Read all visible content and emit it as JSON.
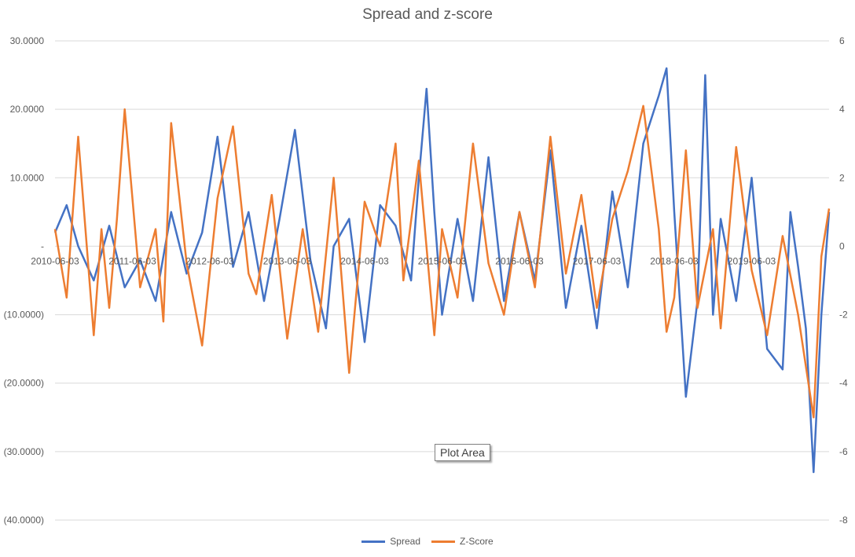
{
  "chart_data": {
    "type": "line",
    "title": "Spread and z-score",
    "tooltip": "Plot Area",
    "x_tick_labels": [
      "2010-06-03",
      "2011-06-03",
      "2012-06-03",
      "2013-06-03",
      "2014-06-03",
      "2015-06-03",
      "2016-06-03",
      "2017-06-03",
      "2018-06-03",
      "2019-06-03"
    ],
    "y_left": {
      "ylim": [
        -40,
        30
      ],
      "tick_labels": [
        "30.0000",
        "20.0000",
        "10.0000",
        "-",
        "(10.0000)",
        "(20.0000)",
        "(30.0000)",
        "(40.0000)"
      ],
      "tick_values": [
        30,
        20,
        10,
        0,
        -10,
        -20,
        -30,
        -40
      ]
    },
    "y_right": {
      "ylim": [
        -8,
        6
      ],
      "tick_labels": [
        "6",
        "4",
        "2",
        "0",
        "-2",
        "-4",
        "-6",
        "-8"
      ],
      "tick_values": [
        6,
        4,
        2,
        0,
        -2,
        -4,
        -6,
        -8
      ]
    },
    "grid": true,
    "legend_position": "bottom",
    "series": [
      {
        "name": "Spread",
        "axis": "left",
        "color": "#4472C4",
        "x": [
          2010.0,
          2010.15,
          2010.3,
          2010.5,
          2010.7,
          2010.9,
          2011.1,
          2011.3,
          2011.5,
          2011.7,
          2011.9,
          2012.1,
          2012.3,
          2012.5,
          2012.7,
          2012.9,
          2013.1,
          2013.3,
          2013.5,
          2013.6,
          2013.8,
          2014.0,
          2014.2,
          2014.4,
          2014.6,
          2014.7,
          2014.8,
          2014.9,
          2015.0,
          2015.2,
          2015.4,
          2015.6,
          2015.8,
          2016.0,
          2016.2,
          2016.4,
          2016.6,
          2016.8,
          2017.0,
          2017.2,
          2017.4,
          2017.6,
          2017.8,
          2017.9,
          2018.0,
          2018.15,
          2018.3,
          2018.4,
          2018.5,
          2018.6,
          2018.8,
          2019.0,
          2019.2,
          2019.4,
          2019.5,
          2019.6,
          2019.7,
          2019.8,
          2019.9,
          2020.0
        ],
        "values": [
          2,
          6,
          0,
          -5,
          3,
          -6,
          -2,
          -8,
          5,
          -4,
          2,
          16,
          -3,
          5,
          -8,
          4,
          17,
          -2,
          -12,
          0,
          4,
          -14,
          6,
          3,
          -5,
          10,
          23,
          5,
          -10,
          4,
          -8,
          13,
          -8,
          5,
          -5,
          14,
          -9,
          3,
          -12,
          8,
          -6,
          15,
          22,
          26,
          5,
          -22,
          -8,
          25,
          -10,
          4,
          -8,
          10,
          -15,
          -18,
          5,
          -3,
          -12,
          -33,
          -10,
          5
        ]
      },
      {
        "name": "Z-Score",
        "axis": "right",
        "color": "#ED7D31",
        "x": [
          2010.0,
          2010.15,
          2010.3,
          2010.5,
          2010.6,
          2010.7,
          2010.8,
          2010.9,
          2011.1,
          2011.3,
          2011.4,
          2011.5,
          2011.7,
          2011.9,
          2012.1,
          2012.3,
          2012.5,
          2012.6,
          2012.8,
          2013.0,
          2013.2,
          2013.4,
          2013.6,
          2013.8,
          2014.0,
          2014.2,
          2014.4,
          2014.5,
          2014.7,
          2014.9,
          2015.0,
          2015.2,
          2015.4,
          2015.6,
          2015.8,
          2016.0,
          2016.2,
          2016.4,
          2016.6,
          2016.8,
          2017.0,
          2017.2,
          2017.4,
          2017.6,
          2017.8,
          2017.9,
          2018.0,
          2018.15,
          2018.3,
          2018.5,
          2018.6,
          2018.8,
          2019.0,
          2019.2,
          2019.4,
          2019.6,
          2019.8,
          2019.9,
          2020.0
        ],
        "values": [
          0.5,
          -1.5,
          3.2,
          -2.6,
          0.5,
          -1.8,
          0.8,
          4.0,
          -1.2,
          0.5,
          -2.2,
          3.6,
          -0.5,
          -2.9,
          1.4,
          3.5,
          -0.8,
          -1.4,
          1.5,
          -2.7,
          0.5,
          -2.5,
          2.0,
          -3.7,
          1.3,
          0.0,
          3.0,
          -1.0,
          2.5,
          -2.6,
          0.5,
          -1.5,
          3.0,
          -0.5,
          -2.0,
          1.0,
          -1.2,
          3.2,
          -0.8,
          1.5,
          -1.8,
          0.8,
          2.2,
          4.1,
          0.5,
          -2.5,
          -1.5,
          2.8,
          -1.8,
          0.5,
          -2.4,
          2.9,
          -0.7,
          -2.6,
          0.3,
          -2.0,
          -5.0,
          -0.3,
          1.1
        ]
      }
    ]
  }
}
